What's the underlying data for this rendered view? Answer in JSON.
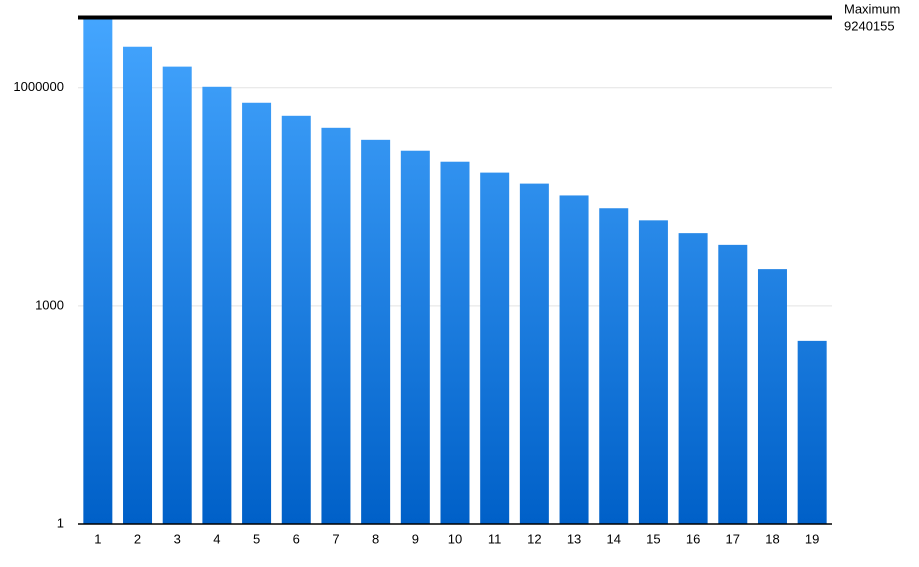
{
  "chart_data": {
    "type": "bar",
    "log_scale": true,
    "grid": true,
    "categories": [
      "1",
      "2",
      "3",
      "4",
      "5",
      "6",
      "7",
      "8",
      "9",
      "10",
      "11",
      "12",
      "13",
      "14",
      "15",
      "16",
      "17",
      "18",
      "19"
    ],
    "values": [
      9000000,
      3660000,
      1950000,
      1030000,
      621000,
      411000,
      281000,
      192000,
      136000,
      96000,
      68000,
      48000,
      33000,
      22000,
      15000,
      10000,
      6900,
      3200,
      330
    ],
    "gradient": [
      "#45a6ff",
      "#0060c8"
    ],
    "ylim": [
      1,
      10000000
    ],
    "yticks": [
      1,
      1000,
      1000000
    ],
    "reference_line": {
      "label": "Maximum",
      "value": 9240155
    }
  }
}
